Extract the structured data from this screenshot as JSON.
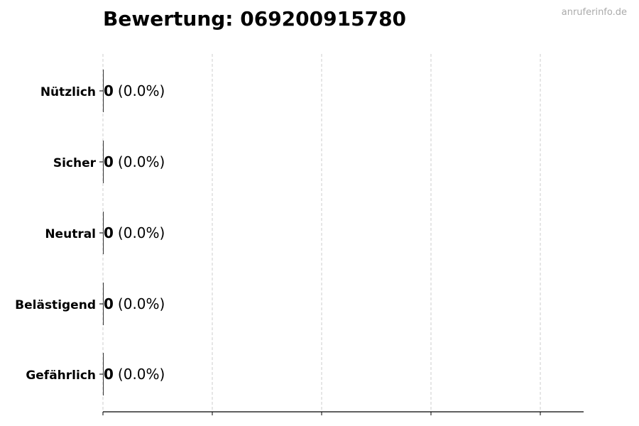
{
  "title": "Bewertung: 069200915780",
  "watermark": "anruferinfo.de",
  "chart_data": {
    "type": "bar",
    "orientation": "horizontal",
    "title": "Bewertung: 069200915780",
    "categories": [
      "Nützlich",
      "Sicher",
      "Neutral",
      "Belästigend",
      "Gefährlich"
    ],
    "values": [
      0,
      0,
      0,
      0,
      0
    ],
    "data_labels": [
      {
        "count": "0",
        "percent": "(0.0%)"
      },
      {
        "count": "0",
        "percent": "(0.0%)"
      },
      {
        "count": "0",
        "percent": "(0.0%)"
      },
      {
        "count": "0",
        "percent": "(0.0%)"
      },
      {
        "count": "0",
        "percent": "(0.0%)"
      }
    ],
    "xlabel": "",
    "ylabel": "",
    "x_tick_labels_shown": false,
    "grid": "vertical dashed",
    "colors": {
      "bar_edge": "#333333",
      "grid": "#cccccc",
      "text": "#000000",
      "watermark": "#aaaaaa"
    }
  }
}
